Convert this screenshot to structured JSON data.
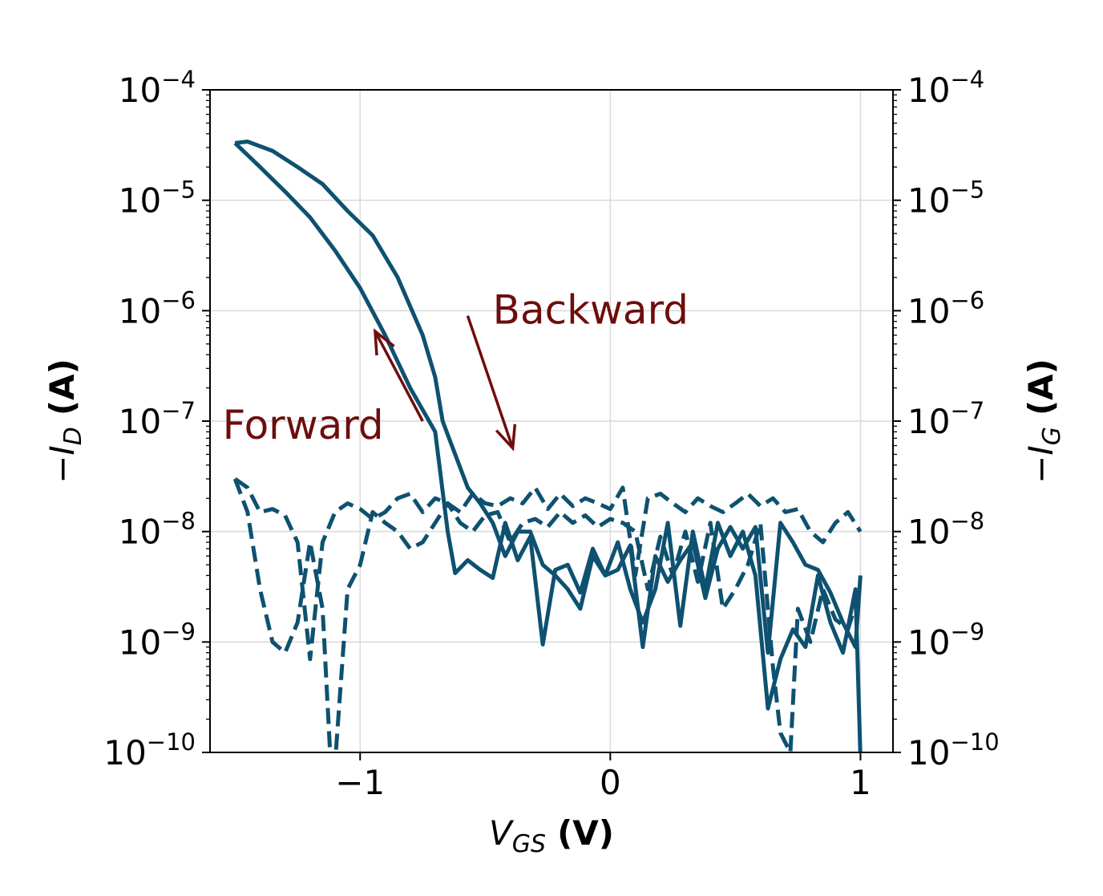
{
  "chart_data": {
    "type": "line",
    "title": "",
    "xlabel": {
      "main": "V",
      "sub": "GS",
      "unit": "(V)"
    },
    "ylabel_left": {
      "prefix": "−I",
      "sub": "D",
      "unit": "(A)"
    },
    "ylabel_right": {
      "prefix": "−I",
      "sub": "G",
      "unit": "(A)"
    },
    "xlim": [
      -1.6,
      1.13
    ],
    "ylim": [
      1e-10,
      0.0001
    ],
    "yscale": "log",
    "grid": true,
    "x_ticks": [
      {
        "value": -1,
        "label": "−1"
      },
      {
        "value": 0,
        "label": "0"
      },
      {
        "value": 1,
        "label": "1"
      }
    ],
    "y_ticks": [
      {
        "value": 0.0001,
        "base": "10",
        "exp": "−4"
      },
      {
        "value": 1e-05,
        "base": "10",
        "exp": "−5"
      },
      {
        "value": 1e-06,
        "base": "10",
        "exp": "−6"
      },
      {
        "value": 1e-07,
        "base": "10",
        "exp": "−7"
      },
      {
        "value": 1e-08,
        "base": "10",
        "exp": "−8"
      },
      {
        "value": 1e-09,
        "base": "10",
        "exp": "−9"
      },
      {
        "value": 1e-10,
        "base": "10",
        "exp": "−10"
      }
    ],
    "colors": {
      "series": "#0e5170",
      "annotation": "#6e0d0d",
      "grid": "#d9d9d9"
    },
    "annotations": [
      {
        "text": "Forward",
        "x": -1.55,
        "y": 1e-07
      },
      {
        "text": "Backward",
        "x": -0.47,
        "y": 1.1e-06
      }
    ],
    "arrows": [
      {
        "name": "forward",
        "from": [
          -0.75,
          1e-07
        ],
        "to": [
          -0.94,
          6.5e-07
        ]
      },
      {
        "name": "backward",
        "from": [
          -0.57,
          9e-07
        ],
        "to": [
          -0.39,
          5.7e-08
        ]
      }
    ],
    "series": [
      {
        "style": "solid",
        "x": [
          -1.5,
          -1.45,
          -1.35,
          -1.25,
          -1.15,
          -1.05,
          -0.95,
          -0.85,
          -0.75,
          -0.7,
          -0.67,
          -0.62,
          -0.57,
          -0.52,
          -0.47,
          -0.42,
          -0.37,
          -0.32,
          -0.27,
          -0.22,
          -0.17,
          -0.12,
          -0.07,
          -0.02,
          0.03,
          0.08,
          0.13,
          0.18,
          0.23,
          0.28,
          0.33,
          0.38,
          0.43,
          0.48,
          0.53,
          0.58,
          0.63,
          0.68,
          0.73,
          0.78,
          0.83,
          0.88,
          0.93,
          0.98,
          1.0
        ],
        "y": [
          3.3e-05,
          3.4e-05,
          2.8e-05,
          2e-05,
          1.4e-05,
          8e-06,
          4.8e-06,
          2e-06,
          6e-07,
          2.5e-07,
          1e-07,
          5e-08,
          2.5e-08,
          1.8e-08,
          1.2e-08,
          6e-09,
          1e-08,
          1e-08,
          5e-09,
          4e-09,
          3e-09,
          2e-09,
          6e-09,
          4e-09,
          8e-09,
          3e-09,
          1.5e-09,
          3e-09,
          1.2e-08,
          1.4e-09,
          1e-08,
          3e-09,
          1.2e-08,
          6e-09,
          1e-08,
          4e-09,
          2.5e-10,
          7e-10,
          1.3e-09,
          9e-10,
          4e-09,
          1.5e-09,
          8e-10,
          3e-09,
          9e-11
        ]
      },
      {
        "style": "solid",
        "x": [
          -1.5,
          -1.4,
          -1.3,
          -1.2,
          -1.1,
          -1.0,
          -0.9,
          -0.8,
          -0.7,
          -0.65,
          -0.62,
          -0.57,
          -0.52,
          -0.47,
          -0.42,
          -0.37,
          -0.32,
          -0.27,
          -0.22,
          -0.17,
          -0.12,
          -0.07,
          -0.02,
          0.03,
          0.08,
          0.13,
          0.18,
          0.23,
          0.28,
          0.33,
          0.38,
          0.43,
          0.48,
          0.53,
          0.58,
          0.63,
          0.68,
          0.73,
          0.78,
          0.83,
          0.88,
          0.93,
          0.98,
          1.0
        ],
        "y": [
          3.3e-05,
          2e-05,
          1.2e-05,
          7e-06,
          3.5e-06,
          1.6e-06,
          6e-07,
          2e-07,
          8e-08,
          1e-08,
          4.2e-09,
          5.5e-09,
          4.5e-09,
          3.8e-09,
          1.2e-08,
          5.5e-09,
          9e-09,
          9.5e-10,
          4.5e-09,
          5e-09,
          2.8e-09,
          7e-09,
          4e-09,
          4.5e-09,
          7.5e-09,
          9e-10,
          6e-09,
          3.5e-09,
          5.5e-09,
          8e-09,
          2.5e-09,
          7e-09,
          1.1e-08,
          7e-09,
          1.1e-08,
          8e-10,
          1.2e-08,
          8e-09,
          5e-09,
          4.5e-09,
          2.8e-09,
          1.5e-09,
          9e-10,
          4e-09
        ]
      },
      {
        "style": "dashed",
        "x": [
          -1.5,
          -1.45,
          -1.4,
          -1.35,
          -1.3,
          -1.25,
          -1.2,
          -1.15,
          -1.1,
          -1.05,
          -1.0,
          -0.95,
          -0.9,
          -0.85,
          -0.8,
          -0.75,
          -0.7,
          -0.65,
          -0.6,
          -0.55,
          -0.5,
          -0.45,
          -0.4,
          -0.35,
          -0.3,
          -0.25,
          -0.2,
          -0.15,
          -0.1,
          -0.05,
          0.0,
          0.05,
          0.1,
          0.15,
          0.2,
          0.25,
          0.3,
          0.35,
          0.4,
          0.45,
          0.5,
          0.55,
          0.6,
          0.65,
          0.7,
          0.75,
          0.8,
          0.85,
          0.9,
          0.95,
          1.0
        ],
        "y": [
          3e-08,
          2.5e-08,
          1.5e-08,
          1.6e-08,
          1.4e-08,
          8e-09,
          7e-10,
          8e-09,
          1.5e-08,
          1.8e-08,
          1.6e-08,
          1.3e-08,
          1.5e-08,
          2e-08,
          2.2e-08,
          1.5e-08,
          2e-08,
          1.8e-08,
          1.5e-08,
          2.2e-08,
          1.8e-08,
          1.7e-08,
          2e-08,
          1.8e-08,
          2.5e-08,
          1.6e-08,
          2.2e-08,
          1.7e-08,
          2e-08,
          1.8e-08,
          1.6e-08,
          2.5e-08,
          4e-09,
          2e-08,
          2.2e-08,
          1.8e-08,
          1.5e-08,
          2e-08,
          1.7e-08,
          1.5e-08,
          1.8e-08,
          2.2e-08,
          1.7e-08,
          2e-08,
          1.5e-08,
          1.6e-08,
          1e-08,
          8e-09,
          1.2e-08,
          1.5e-08,
          1e-08
        ]
      },
      {
        "style": "dashed",
        "x": [
          -1.5,
          -1.45,
          -1.4,
          -1.35,
          -1.3,
          -1.25,
          -1.2,
          -1.15,
          -1.12,
          -1.1,
          -1.05,
          -1.0,
          -0.95,
          -0.9,
          -0.85,
          -0.8,
          -0.75,
          -0.7,
          -0.65,
          -0.6,
          -0.55,
          -0.5,
          -0.45,
          -0.4,
          -0.35,
          -0.3,
          -0.25,
          -0.2,
          -0.15,
          -0.1,
          -0.05,
          0.0,
          0.05,
          0.1,
          0.15,
          0.2,
          0.25,
          0.3,
          0.35,
          0.4,
          0.45,
          0.5,
          0.55,
          0.6,
          0.65,
          0.68,
          0.72,
          0.75,
          0.8,
          0.85,
          0.9,
          0.95,
          1.0
        ],
        "y": [
          3e-08,
          1.5e-08,
          3e-09,
          1e-09,
          8e-10,
          1.5e-09,
          8e-09,
          2e-09,
          1e-10,
          8e-11,
          3e-09,
          5e-09,
          1.5e-08,
          1.2e-08,
          1e-08,
          7e-09,
          8e-09,
          1.2e-08,
          1.8e-08,
          1.2e-08,
          1e-08,
          1.4e-08,
          1.5e-08,
          8e-09,
          1.2e-08,
          1.3e-08,
          1.1e-08,
          1.5e-08,
          1.2e-08,
          1.4e-08,
          1.1e-08,
          1.3e-08,
          1.2e-08,
          1e-08,
          3e-09,
          9e-09,
          4e-09,
          1e-08,
          3.5e-09,
          1.2e-08,
          2e-09,
          3e-09,
          5e-09,
          1.2e-08,
          6e-10,
          1.5e-10,
          1e-10,
          2e-09,
          1e-09,
          3e-09,
          1.6e-09,
          1.3e-09,
          3e-09
        ]
      }
    ]
  }
}
